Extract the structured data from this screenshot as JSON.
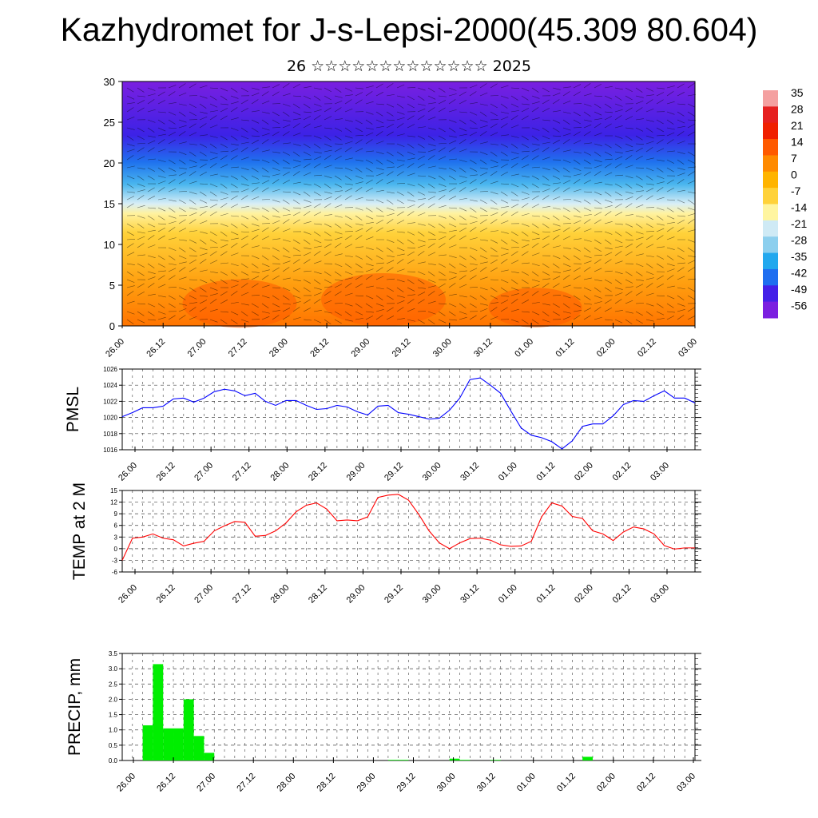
{
  "title": "Kazhydromet for J-s-Lepsi-2000(45.309 80.604)",
  "subtitle": "26 ☆☆☆☆☆☆☆☆☆☆☆☆☆ 2025",
  "time_tick_labels": [
    "26.00",
    "26.12",
    "27.00",
    "27.12",
    "28.00",
    "28.12",
    "29.00",
    "29.12",
    "30.00",
    "30.12",
    "01.00",
    "01.12",
    "02.00",
    "02.12",
    "03.00"
  ],
  "colors": {
    "pmsl_line": "#0000ff",
    "temp_line": "#ff0000",
    "precip_bar": "#00ee00",
    "colorbar": [
      "#7b1fe0",
      "#4420e8",
      "#1f6ef0",
      "#22a8ee",
      "#8ccfee",
      "#cfeaf5",
      "#fff5a0",
      "#ffd23a",
      "#ffb400",
      "#ff8a00",
      "#ff5a00",
      "#f02000",
      "#e62020",
      "#f4a0a0"
    ]
  },
  "chart_data": [
    {
      "type": "heatmap",
      "title": "",
      "ylim": [
        0,
        30
      ],
      "y_ticks": [
        "0",
        "5",
        "10",
        "15",
        "20",
        "25",
        "30"
      ],
      "x_ticks": [
        "26.00",
        "26.12",
        "27.00",
        "27.12",
        "28.00",
        "28.12",
        "29.00",
        "29.12",
        "30.00",
        "30.12",
        "01.00",
        "01.12",
        "02.00",
        "02.12",
        "03.00"
      ],
      "colorbar_labels": [
        "35",
        "28",
        "21",
        "14",
        "7",
        "0",
        "-7",
        "-14",
        "-21",
        "-28",
        "-35",
        "-42",
        "-49",
        "-56"
      ],
      "overlay": "wind barbs"
    },
    {
      "type": "line",
      "ylabel": "PMSL",
      "ylim": [
        1016,
        1026
      ],
      "y_ticks": [
        "1016",
        "1018",
        "1020",
        "1022",
        "1024",
        "1026"
      ],
      "x_ticks": [
        "26.00",
        "26.12",
        "27.00",
        "27.12",
        "28.00",
        "28.12",
        "29.00",
        "29.12",
        "30.00",
        "30.12",
        "01.00",
        "01.12",
        "02.00",
        "02.12",
        "03.00"
      ],
      "values": [
        1020.1,
        1020.6,
        1021.2,
        1021.2,
        1021.4,
        1022.3,
        1022.4,
        1021.9,
        1022.4,
        1023.2,
        1023.5,
        1023.3,
        1022.7,
        1023.0,
        1022.0,
        1021.5,
        1022.1,
        1022.1,
        1021.5,
        1021.0,
        1021.1,
        1021.5,
        1021.3,
        1020.7,
        1020.3,
        1021.4,
        1021.5,
        1020.6,
        1020.4,
        1020.1,
        1019.8,
        1019.9,
        1020.9,
        1022.4,
        1024.7,
        1024.9,
        1024.0,
        1023.0,
        1020.8,
        1018.7,
        1017.8,
        1017.5,
        1017.0,
        1016.1,
        1017.1,
        1018.9,
        1019.2,
        1019.2,
        1020.2,
        1021.6,
        1022.1,
        1022.0,
        1022.7,
        1023.3,
        1022.4,
        1022.4,
        1021.8
      ]
    },
    {
      "type": "line",
      "ylabel": "TEMP at 2 M",
      "ylim": [
        -6,
        15
      ],
      "y_ticks": [
        "-6",
        "-3",
        "0",
        "3",
        "6",
        "9",
        "12",
        "15"
      ],
      "x_ticks": [
        "26.00",
        "26.12",
        "27.00",
        "27.12",
        "28.00",
        "28.12",
        "29.00",
        "29.12",
        "30.00",
        "30.12",
        "01.00",
        "01.12",
        "02.00",
        "02.12",
        "03.00"
      ],
      "values": [
        -3.0,
        2.7,
        3.0,
        3.8,
        2.7,
        2.3,
        0.7,
        1.4,
        1.9,
        4.6,
        5.9,
        7.0,
        6.8,
        3.2,
        3.4,
        4.6,
        6.6,
        9.5,
        11.2,
        11.8,
        10.2,
        7.2,
        7.4,
        7.2,
        8.2,
        13.2,
        13.8,
        14.0,
        12.5,
        8.8,
        4.6,
        1.5,
        0.0,
        1.5,
        2.6,
        2.7,
        2.2,
        1.0,
        0.6,
        0.7,
        1.9,
        8.2,
        11.8,
        11.0,
        8.3,
        7.8,
        4.6,
        3.8,
        2.1,
        4.3,
        5.6,
        5.1,
        3.8,
        0.8,
        -0.1,
        0.2,
        0.2
      ]
    },
    {
      "type": "bar",
      "ylabel": "PRECIP, mm",
      "ylim": [
        0,
        3.5
      ],
      "y_ticks": [
        "0.0",
        "0.5",
        "1.0",
        "1.5",
        "2.0",
        "2.5",
        "3.0",
        "3.5"
      ],
      "x_ticks": [
        "26.00",
        "26.12",
        "27.00",
        "27.12",
        "28.00",
        "28.12",
        "29.00",
        "29.12",
        "30.00",
        "30.12",
        "01.00",
        "01.12",
        "02.00",
        "02.12",
        "03.00"
      ],
      "values": [
        0,
        0,
        1.15,
        3.15,
        1.05,
        1.05,
        2.0,
        0.8,
        0.25,
        0,
        0,
        0,
        0,
        0,
        0,
        0,
        0,
        0,
        0,
        0,
        0,
        0,
        0,
        0,
        0,
        0,
        0.02,
        0.02,
        0,
        0,
        0,
        0,
        0.06,
        0.02,
        0,
        0,
        0.02,
        0,
        0,
        0,
        0,
        0,
        0,
        0,
        0,
        0.12,
        0,
        0,
        0,
        0,
        0,
        0,
        0,
        0,
        0,
        0,
        0
      ]
    }
  ]
}
